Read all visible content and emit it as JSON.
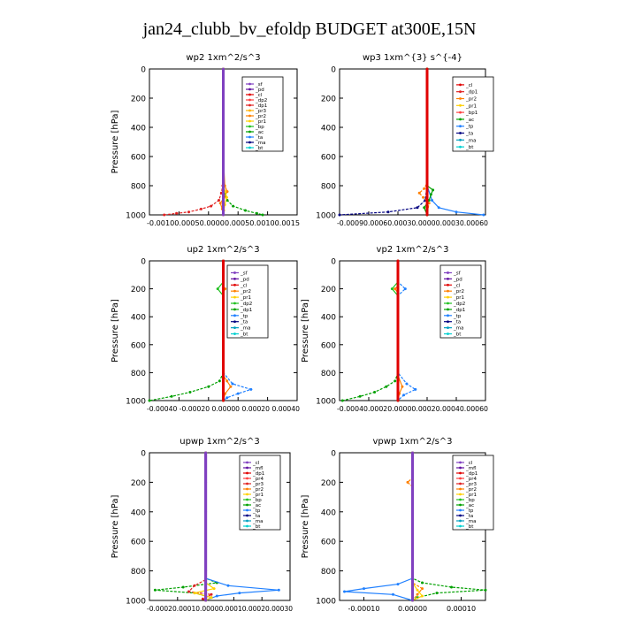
{
  "title": "jan24_clubb_bv_efoldp  BUDGET at300E,15N",
  "chart_data": [
    {
      "type": "line",
      "title": "wp2   1xm^2/s^3",
      "ylabel": "Pressure [hPa]",
      "ylim": [
        1000,
        0
      ],
      "yticks": [
        "0",
        "200",
        "400",
        "600",
        "800",
        "1000"
      ],
      "xlim": [
        -0.0015,
        0.0015
      ],
      "xtick_text": "-0.00100.00050.00000.00050.00100.0015",
      "legend": [
        "_sf",
        "_pd",
        "_cl",
        "_dp2",
        "_dp1",
        "_pr3",
        "_pr2",
        "_pr1",
        "_bp",
        "_ac",
        "_ta",
        "_ma",
        "_bt"
      ],
      "legend_colors": [
        "#8040c0",
        "#6010a0",
        "#e00000",
        "#ff4040",
        "#e02020",
        "#ffb000",
        "#ff8000",
        "#ffd000",
        "#20c020",
        "#00a000",
        "#2080ff",
        "#000080",
        "#00d0d0"
      ],
      "series": [
        {
          "name": "_dp1",
          "color": "#e02020",
          "pressure": [
            0,
            200,
            400,
            600,
            800,
            850,
            900,
            940,
            960,
            980,
            990,
            1000
          ],
          "values": [
            0,
            0,
            0,
            0,
            -1e-05,
            -4e-05,
            -9e-05,
            -0.00025,
            -0.00045,
            -0.0007,
            -0.00095,
            -0.0012
          ]
        },
        {
          "name": "_pr2",
          "color": "#ff8000",
          "pressure": [
            0,
            600,
            800,
            840,
            880,
            920,
            960,
            1000
          ],
          "values": [
            0,
            0,
            3e-05,
            8e-05,
            2e-05,
            -6e-05,
            -2e-05,
            0
          ]
        },
        {
          "name": "_ac",
          "color": "#00a000",
          "pressure": [
            0,
            800,
            850,
            900,
            940,
            970,
            990,
            1000
          ],
          "values": [
            0,
            0,
            2e-05,
            8e-05,
            0.0002,
            0.00045,
            0.00068,
            0.0008
          ]
        },
        {
          "name": "_pr1",
          "color": "#ffd000",
          "pressure": [
            0,
            800,
            840,
            880,
            930,
            970,
            1000
          ],
          "values": [
            0,
            0,
            4e-05,
            7e-05,
            3e-05,
            1e-05,
            0
          ]
        },
        {
          "name": "_bt",
          "color": "#8040c0",
          "pressure": [
            0,
            100,
            200,
            400,
            600,
            800,
            1000
          ],
          "values": [
            0,
            0,
            0,
            0,
            0,
            0,
            0
          ]
        }
      ]
    },
    {
      "type": "line",
      "title": "wp3   1xm^{3} s^{-4}",
      "ylabel": "",
      "ylim": [
        1000,
        0
      ],
      "yticks": [
        "0",
        "200",
        "400",
        "600",
        "800",
        "1000"
      ],
      "xlim": [
        -0.0009,
        0.0006
      ],
      "xtick_text": "-0.00090.00060.00030.00000.00030.00060",
      "legend": [
        "_cl",
        "_dp1",
        "_pr2",
        "_pr1",
        "_bp1",
        "_ac",
        "_tp",
        "_ta",
        "_ma",
        "_bt"
      ],
      "legend_colors": [
        "#e00000",
        "#e02020",
        "#ff8000",
        "#ffd000",
        "#ff4040",
        "#00a000",
        "#2080ff",
        "#000080",
        "#00a0c0",
        "#00d0d0"
      ],
      "series": [
        {
          "name": "_ta",
          "color": "#000080",
          "pressure": [
            0,
            800,
            900,
            950,
            980,
            1000
          ],
          "values": [
            0,
            0,
            -2e-05,
            -0.0001,
            -0.0004,
            -0.0009
          ]
        },
        {
          "name": "_tp",
          "color": "#2080ff",
          "pressure": [
            0,
            800,
            900,
            950,
            980,
            1000
          ],
          "values": [
            0,
            0,
            5e-05,
            0.00012,
            0.0003,
            0.00058
          ]
        },
        {
          "name": "_pr2",
          "color": "#ff8000",
          "pressure": [
            0,
            780,
            820,
            850,
            880,
            920,
            1000
          ],
          "values": [
            0,
            0,
            -3e-05,
            -8e-05,
            -4e-05,
            2e-05,
            0
          ]
        },
        {
          "name": "_ac",
          "color": "#00a000",
          "pressure": [
            0,
            800,
            830,
            860,
            900,
            950,
            1000
          ],
          "values": [
            0,
            0,
            6e-05,
            4e-05,
            2e-05,
            -3e-05,
            0
          ]
        },
        {
          "name": "_cl",
          "color": "#e00000",
          "pressure": [
            0,
            200,
            400,
            600,
            800,
            1000
          ],
          "values": [
            0,
            0,
            0,
            0,
            0,
            0
          ]
        }
      ]
    },
    {
      "type": "line",
      "title": "up2   1xm^2/s^3",
      "ylabel": "Pressure [hPa]",
      "ylim": [
        1000,
        0
      ],
      "yticks": [
        "0",
        "200",
        "400",
        "600",
        "800",
        "1000"
      ],
      "xlim": [
        -0.0004,
        0.0004
      ],
      "xtick_text": "-0.00040 -0.00020  0.00000  0.00020  0.00040",
      "legend": [
        "_sf",
        "_pd",
        "_cl",
        "_pr2",
        "_pr1",
        "_dp2",
        "_dp1",
        "_tp",
        "_ta",
        "_ma",
        "_bt"
      ],
      "legend_colors": [
        "#8040c0",
        "#6010a0",
        "#e00000",
        "#ff8000",
        "#ffd000",
        "#20c020",
        "#00a000",
        "#2080ff",
        "#000080",
        "#00a0c0",
        "#00d0d0"
      ],
      "series": [
        {
          "name": "_dp1",
          "color": "#00a000",
          "pressure": [
            0,
            800,
            860,
            900,
            940,
            970,
            1000
          ],
          "values": [
            0,
            0,
            -2e-05,
            -8e-05,
            -0.00018,
            -0.00028,
            -0.0004
          ]
        },
        {
          "name": "_dp2",
          "color": "#20c020",
          "pressure": [
            0,
            150,
            200,
            250,
            300,
            1000
          ],
          "values": [
            0,
            0,
            -3e-05,
            0,
            0,
            0
          ]
        },
        {
          "name": "_tp",
          "color": "#2080ff",
          "pressure": [
            0,
            800,
            880,
            920,
            950,
            980,
            1000
          ],
          "values": [
            0,
            0,
            5e-05,
            0.00015,
            8e-05,
            2e-05,
            0
          ]
        },
        {
          "name": "_pr2",
          "color": "#ff8000",
          "pressure": [
            0,
            180,
            200,
            230,
            820,
            860,
            900,
            950,
            1000
          ],
          "values": [
            0,
            0,
            1e-05,
            0,
            0,
            2e-05,
            4e-05,
            1e-05,
            0
          ]
        },
        {
          "name": "_cl",
          "color": "#e00000",
          "pressure": [
            0,
            200,
            400,
            600,
            800,
            1000
          ],
          "values": [
            0,
            0,
            0,
            0,
            0,
            0
          ]
        }
      ]
    },
    {
      "type": "line",
      "title": "vp2   1xm^2/s^3",
      "ylabel": "Pressure [hPa]",
      "ylim": [
        1000,
        0
      ],
      "yticks": [
        "0",
        "200",
        "400",
        "600",
        "800",
        "1000"
      ],
      "xlim": [
        -0.0004,
        0.0006
      ],
      "xtick_text": "-0.00040.00020.00000.00020.00040.00060",
      "legend": [
        "_sf",
        "_pd",
        "_cl",
        "_pr2",
        "_pr1",
        "_dp2",
        "_dp1",
        "_tp",
        "_ta",
        "_ma",
        "_bt"
      ],
      "legend_colors": [
        "#8040c0",
        "#6010a0",
        "#e00000",
        "#ff8000",
        "#ffd000",
        "#20c020",
        "#00a000",
        "#2080ff",
        "#000080",
        "#00a0c0",
        "#00d0d0"
      ],
      "series": [
        {
          "name": "_dp1",
          "color": "#00a000",
          "pressure": [
            0,
            800,
            860,
            900,
            940,
            970,
            1000
          ],
          "values": [
            0,
            0,
            -2e-05,
            -8e-05,
            -0.00016,
            -0.00026,
            -0.00038
          ]
        },
        {
          "name": "_dp2",
          "color": "#20c020",
          "pressure": [
            0,
            150,
            200,
            250,
            1000
          ],
          "values": [
            0,
            0,
            -4e-05,
            0,
            0
          ]
        },
        {
          "name": "_tp",
          "color": "#2080ff",
          "pressure": [
            0,
            150,
            200,
            250,
            800,
            880,
            920,
            960,
            1000
          ],
          "values": [
            0,
            0,
            5e-05,
            0,
            0,
            6e-05,
            0.00012,
            4e-05,
            0
          ]
        },
        {
          "name": "_pr2",
          "color": "#ff8000",
          "pressure": [
            0,
            180,
            200,
            230,
            820,
            900,
            950,
            1000
          ],
          "values": [
            0,
            0,
            -2e-05,
            0,
            0,
            3e-05,
            1e-05,
            0
          ]
        },
        {
          "name": "_cl",
          "color": "#e00000",
          "pressure": [
            0,
            200,
            400,
            600,
            800,
            1000
          ],
          "values": [
            0,
            0,
            0,
            0,
            0,
            0
          ]
        }
      ]
    },
    {
      "type": "line",
      "title": "upwp   1xm^2/s^3",
      "ylabel": "Pressure [hPa]",
      "ylim": [
        1000,
        0
      ],
      "yticks": [
        "0",
        "200",
        "400",
        "600",
        "800",
        "1000"
      ],
      "xlim": [
        -0.0002,
        0.0003
      ],
      "xtick_text": "-0.00020.00010.00000.00010.00020.00030",
      "legend": [
        "_cl",
        "_mfl",
        "_dp1",
        "_pr4",
        "_pr3",
        "_pr2",
        "_pr1",
        "_bp",
        "_ac",
        "_tp",
        "_ta",
        "_ma",
        "_bt"
      ],
      "legend_colors": [
        "#8040c0",
        "#6010a0",
        "#e00000",
        "#ff4040",
        "#e02020",
        "#ff8000",
        "#ffd000",
        "#20c020",
        "#00a000",
        "#2080ff",
        "#000080",
        "#00a0c0",
        "#00d0d0"
      ],
      "series": [
        {
          "name": "_ac",
          "color": "#00a000",
          "pressure": [
            0,
            850,
            880,
            910,
            930,
            950,
            980,
            1000
          ],
          "values": [
            0,
            0,
            4e-05,
            -8e-05,
            -0.00018,
            -4e-05,
            2e-05,
            0
          ]
        },
        {
          "name": "_tp",
          "color": "#2080ff",
          "pressure": [
            0,
            850,
            900,
            930,
            950,
            970,
            1000
          ],
          "values": [
            0,
            0,
            8e-05,
            0.00026,
            0.00012,
            4e-05,
            0
          ]
        },
        {
          "name": "_pr3",
          "color": "#e02020",
          "pressure": [
            0,
            860,
            900,
            940,
            960,
            990,
            1000
          ],
          "values": [
            0,
            0,
            -4e-05,
            -6e-05,
            2e-05,
            -1e-05,
            0
          ]
        },
        {
          "name": "_pr1",
          "color": "#ffd000",
          "pressure": [
            0,
            880,
            920,
            950,
            980,
            1000
          ],
          "values": [
            0,
            0,
            3e-05,
            -4e-05,
            2e-05,
            0
          ]
        },
        {
          "name": "_cl",
          "color": "#8040c0",
          "pressure": [
            0,
            200,
            400,
            600,
            800,
            1000
          ],
          "values": [
            0,
            0,
            0,
            0,
            0,
            0
          ]
        }
      ]
    },
    {
      "type": "line",
      "title": "vpwp   1xm^2/s^3",
      "ylabel": "Pressure [hPa]",
      "ylim": [
        1000,
        0
      ],
      "yticks": [
        "0",
        "200",
        "400",
        "600",
        "800",
        "1000"
      ],
      "xlim": [
        -0.00015,
        0.00015
      ],
      "xticks": [
        -0.0001,
        0,
        0.0001
      ],
      "xtick_labels": [
        "-0.00010",
        "0.00000",
        "0.00010"
      ],
      "legend": [
        "_cl",
        "_mfl",
        "_dp1",
        "_pr4",
        "_pr3",
        "_pr2",
        "_pr1",
        "_bp",
        "_ac",
        "_tp",
        "_ta",
        "_ma",
        "_bt"
      ],
      "legend_colors": [
        "#8040c0",
        "#6010a0",
        "#e00000",
        "#ff4040",
        "#e02020",
        "#ff8000",
        "#ffd000",
        "#20c020",
        "#00a000",
        "#2080ff",
        "#000080",
        "#00a0c0",
        "#00d0d0"
      ],
      "series": [
        {
          "name": "_ac",
          "color": "#00a000",
          "pressure": [
            0,
            850,
            880,
            910,
            930,
            950,
            980,
            1000
          ],
          "values": [
            0,
            0,
            2e-05,
            8e-05,
            0.00015,
            5e-05,
            1e-05,
            0
          ]
        },
        {
          "name": "_tp",
          "color": "#2080ff",
          "pressure": [
            0,
            850,
            890,
            920,
            940,
            960,
            1000
          ],
          "values": [
            0,
            0,
            -3e-05,
            -0.0001,
            -0.00014,
            -4e-05,
            0
          ]
        },
        {
          "name": "_pr2",
          "color": "#ff8000",
          "pressure": [
            0,
            170,
            200,
            230,
            880,
            920,
            960,
            1000
          ],
          "values": [
            0,
            0,
            -1e-05,
            0,
            0,
            2e-05,
            1e-05,
            0
          ]
        },
        {
          "name": "_pr1",
          "color": "#ffd000",
          "pressure": [
            0,
            880,
            930,
            970,
            1000
          ],
          "values": [
            0,
            0,
            1e-05,
            2e-05,
            0
          ]
        },
        {
          "name": "_cl",
          "color": "#8040c0",
          "pressure": [
            0,
            200,
            400,
            600,
            800,
            1000
          ],
          "values": [
            0,
            0,
            0,
            0,
            0,
            0
          ]
        }
      ]
    }
  ]
}
